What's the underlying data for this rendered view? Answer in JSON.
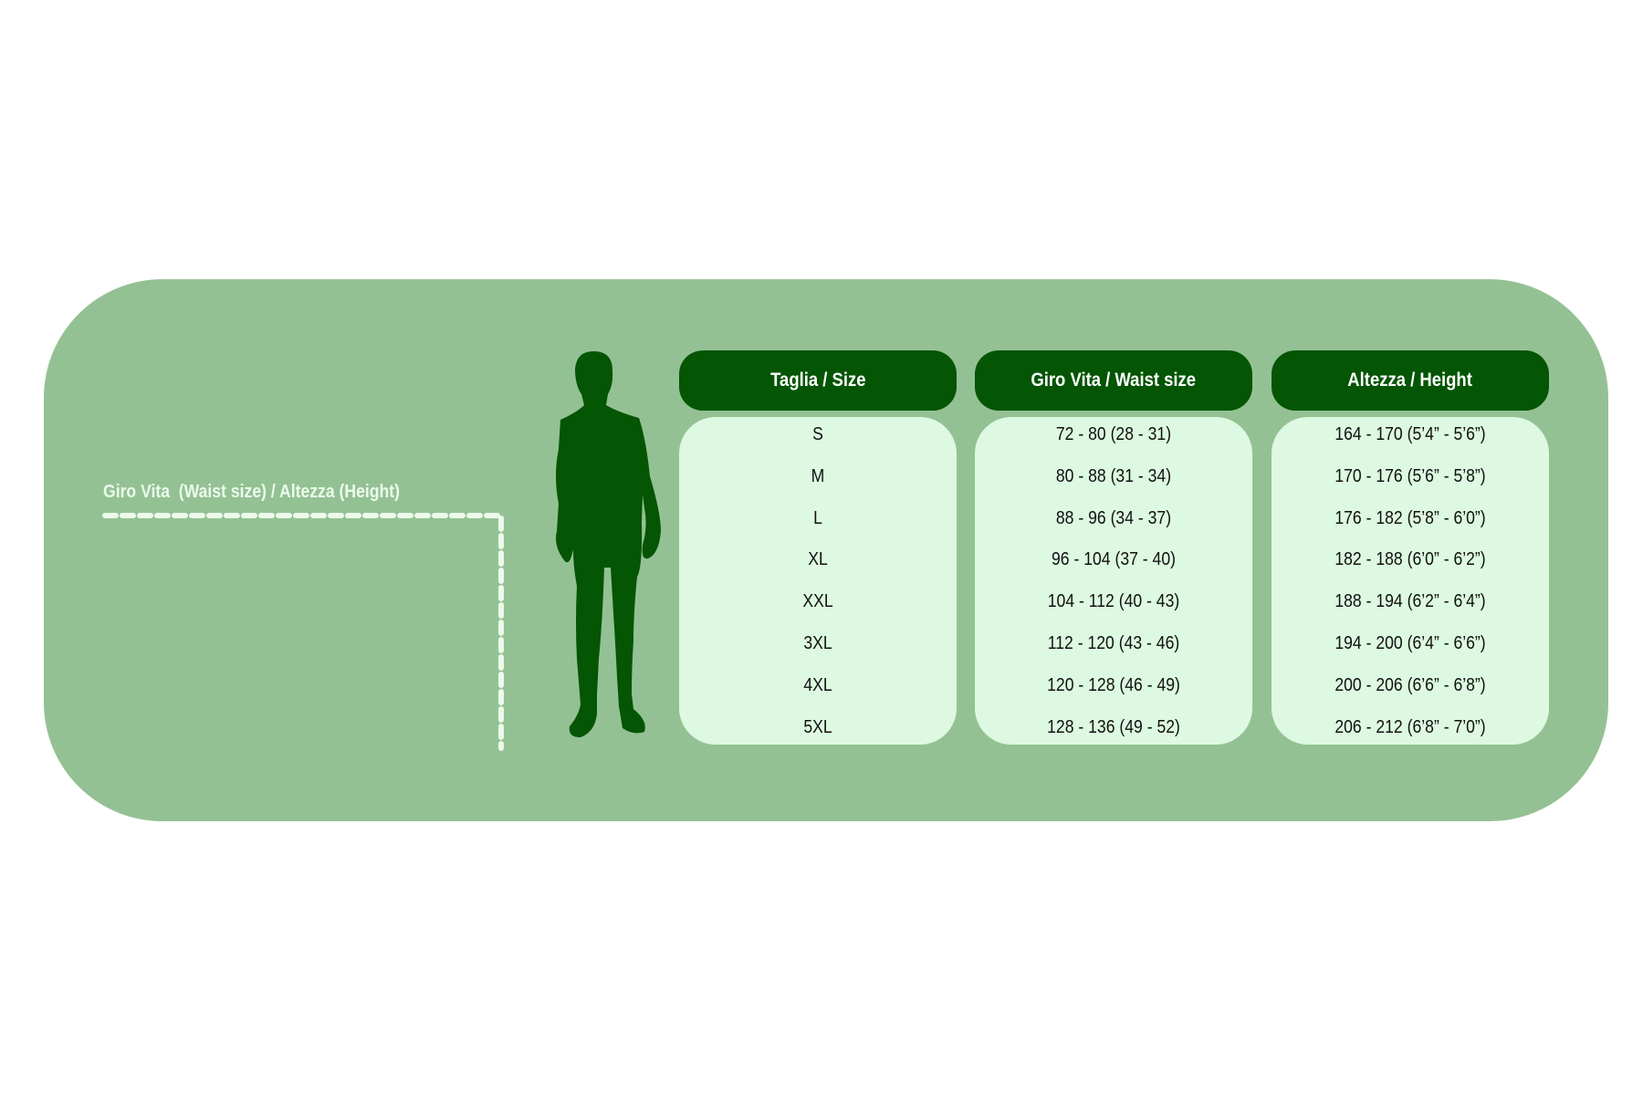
{
  "guide_label": "Giro Vita  (Waist size) / Altezza (Height)",
  "colors": {
    "panel": "#94c194",
    "header": "#045504",
    "body": "#ddf9e1",
    "silhouette": "#045504"
  },
  "icons": {
    "figure": "man-silhouette-icon"
  },
  "table": {
    "headers": [
      "Taglia / Size",
      "Giro Vita / Waist size",
      "Altezza / Height"
    ],
    "columns": [
      [
        "S",
        "M",
        "L",
        "XL",
        "XXL",
        "3XL",
        "4XL",
        "5XL"
      ],
      [
        "72 - 80 (28 - 31)",
        "80 - 88 (31 - 34)",
        "88 - 96 (34 - 37)",
        "96 - 104 (37 - 40)",
        "104 - 112 (40 - 43)",
        "112 - 120 (43 - 46)",
        "120 - 128 (46 - 49)",
        "128 - 136 (49 - 52)"
      ],
      [
        "164 - 170 (5’4” - 5’6”)",
        "170 - 176 (5’6” - 5’8”)",
        "176 - 182 (5’8” - 6’0”)",
        "182 - 188 (6’0” - 6’2”)",
        "188 - 194 (6’2” - 6’4”)",
        "194 - 200 (6’4” - 6’6”)",
        "200 - 206 (6’6” - 6’8”)",
        "206 - 212 (6’8” - 7’0”)"
      ]
    ]
  }
}
